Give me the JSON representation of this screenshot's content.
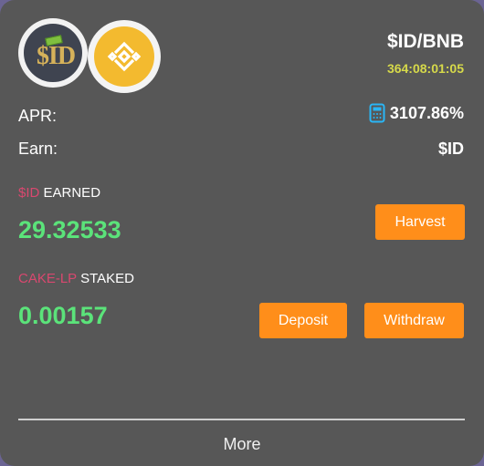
{
  "pool": {
    "pair": "$ID/BNB",
    "countdown": "364:08:01:05",
    "token_logo_text": "$ID"
  },
  "stats": {
    "apr_label": "APR:",
    "apr_value": "3107.86%",
    "earn_label": "Earn:",
    "earn_value": "$ID"
  },
  "earned": {
    "token": "$ID",
    "label": " EARNED",
    "amount": "29.32533",
    "harvest_label": "Harvest"
  },
  "staked": {
    "token": "CAKE-LP",
    "label": " STAKED",
    "amount": "0.00157",
    "deposit_label": "Deposit",
    "withdraw_label": "Withdraw"
  },
  "footer": {
    "more_label": "More"
  },
  "icons": {
    "token_logo": "id-token-logo-icon",
    "bnb_logo": "bnb-logo-icon",
    "calculator": "calculator-icon"
  },
  "colors": {
    "card_background": "#575757",
    "accent_button": "#ff8e1a",
    "amount_green": "#5be37a",
    "token_pink": "#d9486f",
    "countdown_yellow": "#d6d94a"
  }
}
